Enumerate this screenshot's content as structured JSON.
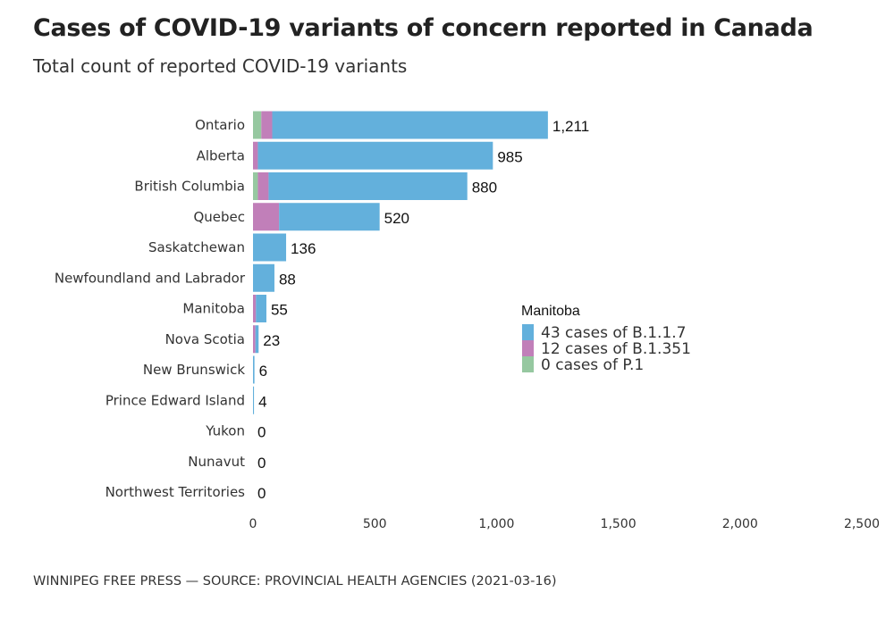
{
  "chart_data": {
    "type": "bar",
    "orientation": "horizontal",
    "stacked": true,
    "title": "Cases of COVID-19 variants of concern reported in Canada",
    "subtitle": "Total count of reported COVID-19 variants",
    "categories": [
      "Ontario",
      "Alberta",
      "British Columbia",
      "Quebec",
      "Saskatchewan",
      "Newfoundland and Labrador",
      "Manitoba",
      "Nova Scotia",
      "New Brunswick",
      "Prince Edward Island",
      "Yukon",
      "Nunavut",
      "Northwest Territories"
    ],
    "totals": [
      1211,
      985,
      880,
      520,
      136,
      88,
      55,
      23,
      6,
      4,
      0,
      0,
      0
    ],
    "total_labels": [
      "1,211",
      "985",
      "880",
      "520",
      "136",
      "88",
      "55",
      "23",
      "6",
      "4",
      "0",
      "0",
      "0"
    ],
    "series": [
      {
        "key": "P.1",
        "color": "#96c8a0",
        "values": [
          34,
          0,
          20,
          0,
          0,
          0,
          0,
          0,
          0,
          0,
          0,
          0,
          0
        ]
      },
      {
        "key": "B.1.351",
        "color": "#c17fb9",
        "values": [
          45,
          20,
          44,
          107,
          0,
          0,
          12,
          10,
          0,
          0,
          0,
          0,
          0
        ]
      },
      {
        "key": "B.1.1.7",
        "color": "#63b0dc",
        "values": [
          1132,
          965,
          816,
          413,
          136,
          88,
          43,
          13,
          6,
          4,
          0,
          0,
          0
        ]
      }
    ],
    "xlim": [
      0,
      2500
    ],
    "xticks": [
      0,
      500,
      1000,
      1500,
      2000,
      2500
    ],
    "xtick_labels": [
      "0",
      "500",
      "1,000",
      "1,500",
      "2,000",
      "2,500"
    ],
    "grid": false,
    "legend": {
      "title": "Manitoba",
      "placement": "right",
      "items": [
        {
          "label": "43 cases of B.1.1.7",
          "color": "#63b0dc"
        },
        {
          "label": "12 cases of B.1.351",
          "color": "#c17fb9"
        },
        {
          "label": "0 cases of P.1",
          "color": "#96c8a0"
        }
      ]
    }
  },
  "footer": "WINNIPEG FREE PRESS — SOURCE: PROVINCIAL HEALTH AGENCIES (2021-03-16)"
}
